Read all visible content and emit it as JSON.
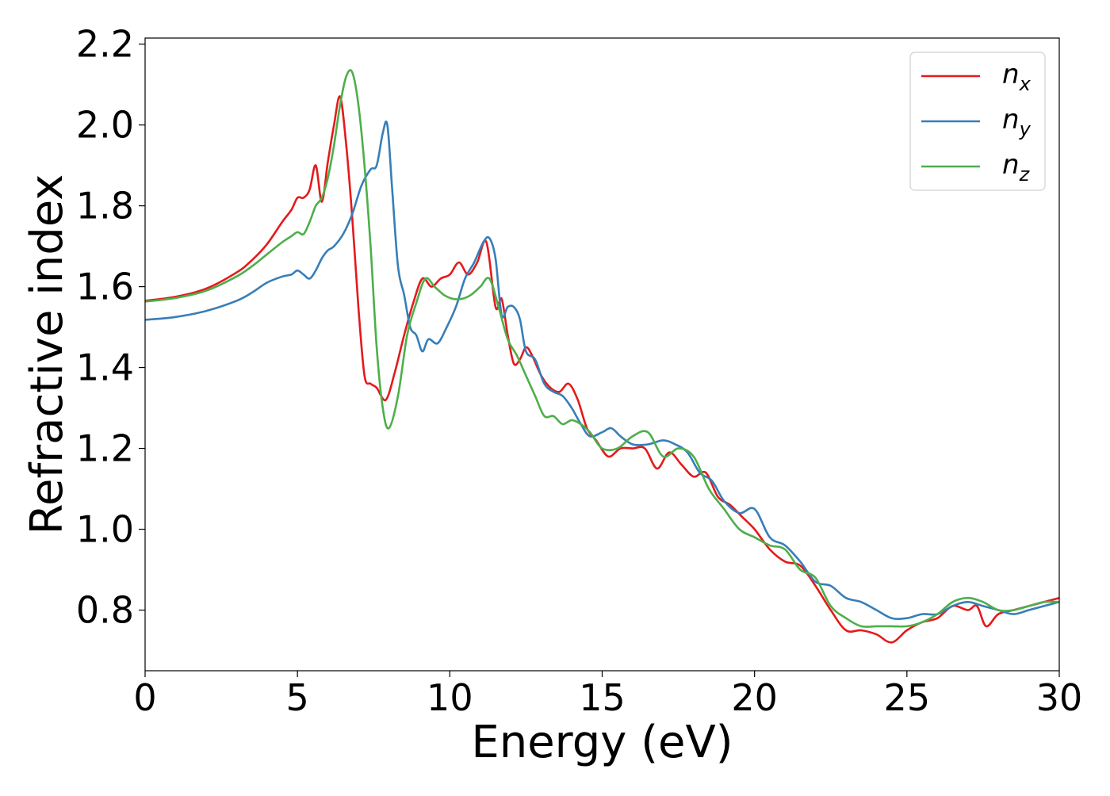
{
  "chart_data": {
    "type": "line",
    "title": "",
    "xlabel": "Energy (eV)",
    "ylabel": "Refractive index",
    "xlim": [
      0,
      30
    ],
    "ylim": [
      0.65,
      2.215
    ],
    "xticks": [
      0,
      5,
      10,
      15,
      20,
      25,
      30
    ],
    "xtick_labels": [
      "0",
      "5",
      "10",
      "15",
      "20",
      "25",
      "30"
    ],
    "yticks": [
      0.8,
      1.0,
      1.2,
      1.4,
      1.6,
      1.8,
      2.0,
      2.2
    ],
    "ytick_labels": [
      "0.8",
      "1.0",
      "1.2",
      "1.4",
      "1.6",
      "1.8",
      "2.0",
      "2.2"
    ],
    "grid": false,
    "legend_position": "top-right",
    "series": [
      {
        "name": "n_x",
        "legend_base": "n",
        "legend_sub": "x",
        "color": "#e41a1c",
        "x": [
          0,
          1,
          2,
          3,
          3.5,
          4,
          4.5,
          4.8,
          5.0,
          5.2,
          5.4,
          5.6,
          5.8,
          6.0,
          6.2,
          6.4,
          6.6,
          6.8,
          7.0,
          7.2,
          7.4,
          7.6,
          7.9,
          8.2,
          8.5,
          8.8,
          9.1,
          9.4,
          9.7,
          10.0,
          10.3,
          10.6,
          10.9,
          11.2,
          11.5,
          11.7,
          11.9,
          12.1,
          12.3,
          12.5,
          12.7,
          13.0,
          13.3,
          13.6,
          13.9,
          14.2,
          14.5,
          14.8,
          15.2,
          15.6,
          16.0,
          16.4,
          16.8,
          17.2,
          17.6,
          18.0,
          18.4,
          18.8,
          19.2,
          19.6,
          20.0,
          20.5,
          21.0,
          21.5,
          22.0,
          22.5,
          23.0,
          23.5,
          24.0,
          24.5,
          25.0,
          25.5,
          26.0,
          26.5,
          27.0,
          27.3,
          27.6,
          28.0,
          28.5,
          29.0,
          29.5,
          30.0
        ],
        "values": [
          1.565,
          1.575,
          1.595,
          1.635,
          1.665,
          1.705,
          1.76,
          1.79,
          1.82,
          1.82,
          1.84,
          1.9,
          1.81,
          1.91,
          2.0,
          2.07,
          1.95,
          1.77,
          1.55,
          1.38,
          1.36,
          1.35,
          1.32,
          1.39,
          1.48,
          1.56,
          1.62,
          1.6,
          1.62,
          1.63,
          1.66,
          1.63,
          1.66,
          1.71,
          1.55,
          1.57,
          1.48,
          1.41,
          1.42,
          1.45,
          1.43,
          1.38,
          1.35,
          1.34,
          1.36,
          1.32,
          1.25,
          1.22,
          1.18,
          1.2,
          1.2,
          1.2,
          1.15,
          1.19,
          1.16,
          1.13,
          1.14,
          1.08,
          1.06,
          1.03,
          1.0,
          0.95,
          0.92,
          0.91,
          0.86,
          0.8,
          0.75,
          0.75,
          0.74,
          0.72,
          0.75,
          0.77,
          0.78,
          0.81,
          0.8,
          0.81,
          0.76,
          0.79,
          0.8,
          0.81,
          0.82,
          0.83
        ]
      },
      {
        "name": "n_y",
        "legend_base": "n",
        "legend_sub": "y",
        "color": "#377eb8",
        "x": [
          0,
          1,
          2,
          3,
          3.5,
          4,
          4.5,
          4.8,
          5.0,
          5.2,
          5.4,
          5.6,
          5.8,
          6.0,
          6.2,
          6.5,
          6.8,
          7.1,
          7.4,
          7.6,
          7.8,
          7.95,
          8.1,
          8.3,
          8.5,
          8.7,
          8.9,
          9.1,
          9.3,
          9.6,
          9.9,
          10.2,
          10.5,
          10.8,
          11.1,
          11.3,
          11.5,
          11.7,
          11.9,
          12.1,
          12.3,
          12.5,
          12.8,
          13.1,
          13.4,
          13.7,
          14.0,
          14.3,
          14.6,
          15.0,
          15.3,
          15.6,
          16.0,
          16.5,
          17.0,
          17.4,
          17.8,
          18.2,
          18.6,
          19.0,
          19.5,
          20.0,
          20.5,
          21.0,
          21.5,
          22.0,
          22.5,
          23.0,
          23.5,
          24.0,
          24.5,
          25.0,
          25.5,
          26.0,
          26.5,
          27.0,
          27.5,
          28.0,
          28.5,
          29.0,
          29.5,
          30.0
        ],
        "values": [
          1.518,
          1.525,
          1.54,
          1.565,
          1.585,
          1.61,
          1.625,
          1.63,
          1.64,
          1.63,
          1.62,
          1.64,
          1.67,
          1.69,
          1.7,
          1.73,
          1.78,
          1.85,
          1.89,
          1.9,
          1.98,
          2.0,
          1.85,
          1.65,
          1.58,
          1.5,
          1.48,
          1.44,
          1.47,
          1.46,
          1.5,
          1.55,
          1.62,
          1.66,
          1.71,
          1.72,
          1.67,
          1.53,
          1.55,
          1.55,
          1.52,
          1.44,
          1.42,
          1.36,
          1.34,
          1.33,
          1.3,
          1.26,
          1.23,
          1.24,
          1.25,
          1.23,
          1.21,
          1.21,
          1.22,
          1.21,
          1.19,
          1.14,
          1.12,
          1.07,
          1.04,
          1.05,
          0.98,
          0.96,
          0.92,
          0.87,
          0.86,
          0.83,
          0.82,
          0.8,
          0.78,
          0.78,
          0.79,
          0.79,
          0.81,
          0.82,
          0.81,
          0.8,
          0.79,
          0.8,
          0.81,
          0.82
        ]
      },
      {
        "name": "n_z",
        "legend_base": "n",
        "legend_sub": "z",
        "color": "#4daf4a",
        "x": [
          0,
          1,
          2,
          3,
          3.5,
          4,
          4.5,
          4.8,
          5.0,
          5.2,
          5.4,
          5.6,
          5.8,
          6.0,
          6.2,
          6.4,
          6.6,
          6.8,
          7.0,
          7.2,
          7.4,
          7.6,
          7.8,
          8.0,
          8.3,
          8.6,
          8.9,
          9.2,
          9.5,
          9.8,
          10.1,
          10.4,
          10.7,
          11.0,
          11.3,
          11.6,
          11.9,
          12.2,
          12.5,
          12.8,
          13.1,
          13.4,
          13.7,
          14.0,
          14.3,
          14.6,
          15.0,
          15.5,
          16.0,
          16.5,
          17.0,
          17.5,
          18.0,
          18.5,
          19.0,
          19.5,
          20.0,
          20.5,
          21.0,
          21.5,
          22.0,
          22.5,
          23.0,
          23.5,
          24.0,
          24.5,
          25.0,
          25.5,
          26.0,
          26.5,
          27.0,
          27.5,
          28.0,
          28.5,
          29.0,
          29.5,
          30.0
        ],
        "values": [
          1.563,
          1.572,
          1.59,
          1.625,
          1.65,
          1.68,
          1.71,
          1.725,
          1.735,
          1.73,
          1.76,
          1.8,
          1.82,
          1.87,
          1.95,
          2.05,
          2.12,
          2.13,
          2.05,
          1.9,
          1.7,
          1.45,
          1.3,
          1.25,
          1.33,
          1.48,
          1.56,
          1.62,
          1.6,
          1.58,
          1.57,
          1.57,
          1.58,
          1.6,
          1.62,
          1.55,
          1.47,
          1.43,
          1.38,
          1.33,
          1.28,
          1.28,
          1.26,
          1.27,
          1.26,
          1.24,
          1.2,
          1.2,
          1.23,
          1.24,
          1.18,
          1.2,
          1.18,
          1.1,
          1.05,
          1.0,
          0.98,
          0.96,
          0.95,
          0.9,
          0.88,
          0.81,
          0.78,
          0.76,
          0.76,
          0.76,
          0.76,
          0.77,
          0.79,
          0.82,
          0.83,
          0.82,
          0.8,
          0.8,
          0.81,
          0.82,
          0.82
        ]
      }
    ]
  }
}
